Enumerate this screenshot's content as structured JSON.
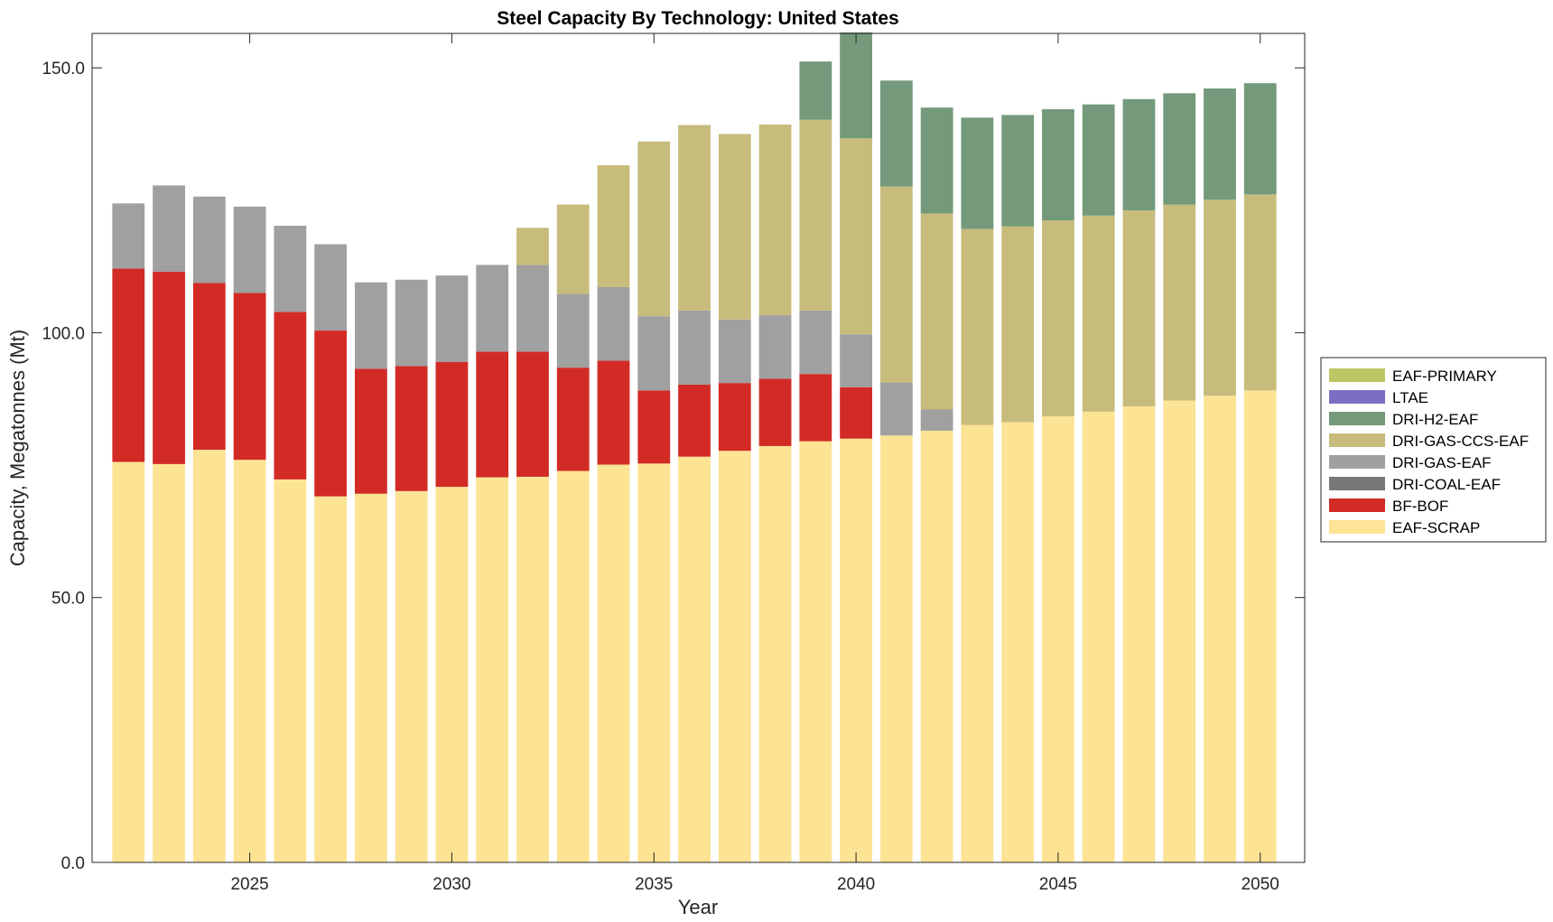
{
  "chart_data": {
    "type": "bar",
    "stacked": true,
    "title": "Steel Capacity By Technology: United States",
    "xlabel": "Year",
    "ylabel": "Capacity, Megatonnes (Mt)",
    "ylim": [
      0,
      156.5
    ],
    "xlim": [
      2021.1,
      2051.1
    ],
    "x_ticks": [
      2025,
      2030,
      2035,
      2040,
      2045,
      2050
    ],
    "x_tick_labels": [
      "2025",
      "2030",
      "2035",
      "2040",
      "2045",
      "2050"
    ],
    "y_ticks": [
      0,
      50,
      100,
      150
    ],
    "y_tick_labels": [
      "0.0",
      "50.0",
      "100.0",
      "150.0"
    ],
    "grid": false,
    "legend_position": "right",
    "x": [
      2022,
      2023,
      2024,
      2025,
      2026,
      2027,
      2028,
      2029,
      2030,
      2031,
      2032,
      2033,
      2034,
      2035,
      2036,
      2037,
      2038,
      2039,
      2040,
      2041,
      2042,
      2043,
      2044,
      2045,
      2046,
      2047,
      2048,
      2049,
      2050
    ],
    "series": [
      {
        "name": "EAF-SCRAP",
        "color": "#FDE394",
        "values": [
          75.6,
          75.2,
          77.9,
          76.0,
          72.3,
          69.1,
          69.6,
          70.1,
          70.9,
          72.7,
          72.8,
          73.9,
          75.1,
          75.3,
          76.6,
          77.7,
          78.6,
          79.5,
          80.0,
          80.6,
          81.5,
          82.6,
          83.1,
          84.2,
          85.1,
          86.1,
          87.2,
          88.1,
          89.1
        ]
      },
      {
        "name": "BF-BOF",
        "color": "#D22B26",
        "values": [
          36.5,
          36.3,
          31.5,
          31.5,
          31.6,
          31.3,
          23.6,
          23.6,
          23.6,
          23.7,
          23.6,
          19.5,
          19.6,
          13.8,
          13.6,
          12.8,
          12.7,
          12.7,
          9.7,
          0,
          0,
          0,
          0,
          0,
          0,
          0,
          0,
          0,
          0
        ]
      },
      {
        "name": "DRI-COAL-EAF",
        "color": "#777777",
        "values": [
          0,
          0,
          0,
          0,
          0,
          0,
          0,
          0,
          0,
          0,
          0,
          0,
          0,
          0,
          0,
          0,
          0,
          0,
          0,
          0,
          0,
          0,
          0,
          0,
          0,
          0,
          0,
          0,
          0
        ]
      },
      {
        "name": "DRI-GAS-EAF",
        "color": "#A0A0A0",
        "values": [
          12.3,
          16.3,
          16.3,
          16.3,
          16.3,
          16.3,
          16.3,
          16.3,
          16.3,
          16.4,
          16.4,
          13.9,
          13.9,
          14.0,
          14.0,
          12.0,
          12.0,
          12.0,
          10.0,
          10.0,
          4.0,
          0,
          0,
          0,
          0,
          0,
          0,
          0,
          0
        ]
      },
      {
        "name": "DRI-GAS-CCS-EAF",
        "color": "#C7BC7C",
        "values": [
          0,
          0,
          0,
          0,
          0,
          0,
          0,
          0,
          0,
          0,
          7.0,
          16.9,
          23.0,
          33.0,
          35.0,
          35.0,
          36.0,
          36.0,
          37.0,
          37.0,
          37.0,
          37.0,
          37.0,
          37.0,
          37.0,
          37.0,
          37.0,
          37.0,
          37.0
        ]
      },
      {
        "name": "DRI-H2-EAF",
        "color": "#749A7B",
        "values": [
          0,
          0,
          0,
          0,
          0,
          0,
          0,
          0,
          0,
          0,
          0,
          0,
          0,
          0,
          0,
          0,
          0,
          11.0,
          20.0,
          20.0,
          20.0,
          21.0,
          21.0,
          21.0,
          21.0,
          21.0,
          21.0,
          21.0,
          21.0
        ]
      },
      {
        "name": "LTAE",
        "color": "#7A6FC2",
        "values": [
          0,
          0,
          0,
          0,
          0,
          0,
          0,
          0,
          0,
          0,
          0,
          0,
          0,
          0,
          0,
          0,
          0,
          0,
          0,
          0,
          0,
          0,
          0,
          0,
          0,
          0,
          0,
          0,
          0
        ]
      },
      {
        "name": "EAF-PRIMARY",
        "color": "#BDC766",
        "values": [
          0,
          0,
          0,
          0,
          0,
          0,
          0,
          0,
          0,
          0,
          0,
          0,
          0,
          0,
          0,
          0,
          0,
          0,
          0,
          0,
          0,
          0,
          0,
          0,
          0,
          0,
          0,
          0,
          0
        ]
      }
    ],
    "legend_order": [
      "EAF-PRIMARY",
      "LTAE",
      "DRI-H2-EAF",
      "DRI-GAS-CCS-EAF",
      "DRI-GAS-EAF",
      "DRI-COAL-EAF",
      "BF-BOF",
      "EAF-SCRAP"
    ]
  }
}
